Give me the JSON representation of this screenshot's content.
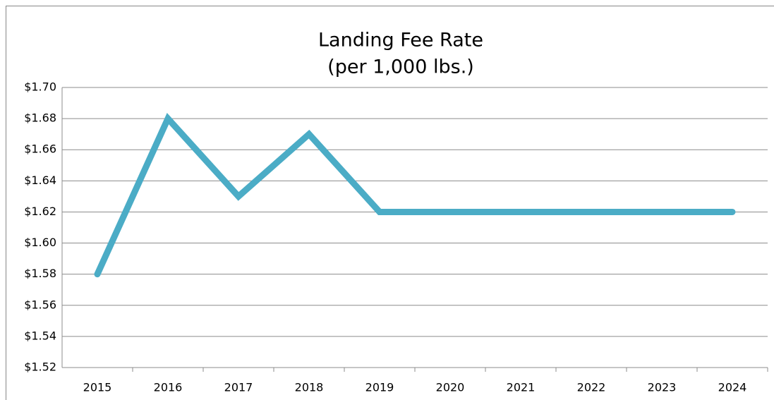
{
  "chart_data": {
    "type": "line",
    "title": "Landing Fee Rate",
    "subtitle": "(per 1,000 lbs.)",
    "categories": [
      "2015",
      "2016",
      "2017",
      "2018",
      "2019",
      "2020",
      "2021",
      "2022",
      "2023",
      "2024"
    ],
    "series": [
      {
        "name": "Landing Fee Rate",
        "color": "#4bacc6",
        "values": [
          1.58,
          1.68,
          1.63,
          1.67,
          1.62,
          1.62,
          1.62,
          1.62,
          1.62,
          1.62
        ]
      }
    ],
    "ylim": [
      1.52,
      1.7
    ],
    "yticks": [
      {
        "value": 1.52,
        "label": "$1.52"
      },
      {
        "value": 1.54,
        "label": "$1.54"
      },
      {
        "value": 1.56,
        "label": "$1.56"
      },
      {
        "value": 1.58,
        "label": "$1.58"
      },
      {
        "value": 1.6,
        "label": "$1.60"
      },
      {
        "value": 1.62,
        "label": "$1.62"
      },
      {
        "value": 1.64,
        "label": "$1.64"
      },
      {
        "value": 1.66,
        "label": "$1.66"
      },
      {
        "value": 1.68,
        "label": "$1.68"
      },
      {
        "value": 1.7,
        "label": "$1.70"
      }
    ],
    "grid": true
  }
}
